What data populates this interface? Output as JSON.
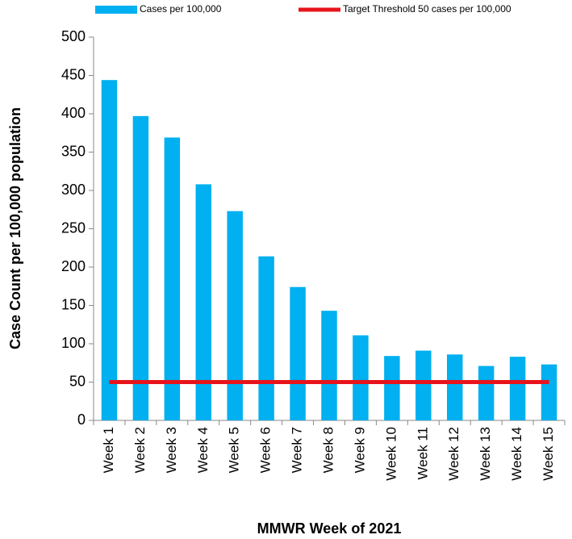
{
  "chart_data": {
    "type": "bar",
    "x_label": "MMWR Week of 2021",
    "y_label": "Case Count per 100,000 population",
    "categories": [
      "Week 1",
      "Week 2",
      "Week 3",
      "Week 4",
      "Week 5",
      "Week 6",
      "Week 7",
      "Week 8",
      "Week 9",
      "Week 10",
      "Week 11",
      "Week 12",
      "Week 13",
      "Week 14",
      "Week 15"
    ],
    "series": [
      {
        "name": "Cases per 100,000",
        "type": "bar",
        "color": "#00b0f0",
        "values": [
          444,
          397,
          369,
          308,
          273,
          214,
          174,
          143,
          111,
          84,
          91,
          86,
          71,
          83,
          73
        ]
      },
      {
        "name": "Target Threshold 50 cases per 100,000",
        "type": "line",
        "color": "#e8141b",
        "values": [
          50,
          50,
          50,
          50,
          50,
          50,
          50,
          50,
          50,
          50,
          50,
          50,
          50,
          50,
          50
        ]
      }
    ],
    "ylim": [
      0,
      500
    ],
    "yticks": [
      0,
      50,
      100,
      150,
      200,
      250,
      300,
      350,
      400,
      450,
      500
    ],
    "grid": false,
    "legend": "top"
  }
}
